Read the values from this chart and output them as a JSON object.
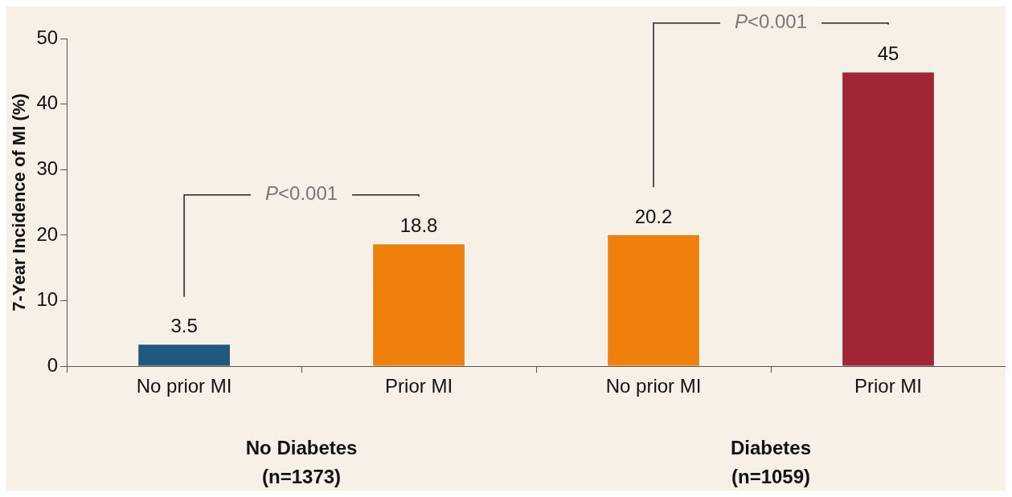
{
  "chart_data": {
    "type": "bar",
    "ylabel": "7-Year Incidence of MI (%)",
    "categories": [
      "No prior MI",
      "Prior MI",
      "No prior MI",
      "Prior MI"
    ],
    "values": [
      3.5,
      18.8,
      20.2,
      45
    ],
    "colors": [
      "#1f5a7e",
      "#f0800c",
      "#f0800c",
      "#a02636"
    ],
    "ylim": [
      0,
      50
    ],
    "yticks": [
      0,
      10,
      20,
      30,
      40,
      50
    ],
    "data_labels": true,
    "grid": false,
    "legend": false,
    "annotations": [
      "No Diabetes\n(n=1373)",
      "Diabetes\n(n=1059)",
      "P<0.001",
      "P<0.001"
    ]
  }
}
